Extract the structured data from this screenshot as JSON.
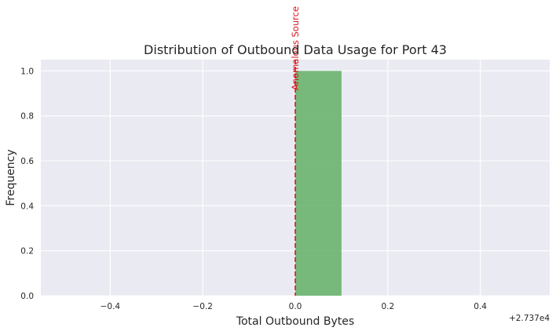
{
  "chart_data": {
    "type": "bar",
    "title": "Distribution of Outbound Data Usage for Port 43",
    "xlabel": "Total Outbound Bytes",
    "ylabel": "Frequency",
    "x_offset_label": "+2.737e4",
    "xlim": [
      -0.55,
      0.55
    ],
    "ylim": [
      0,
      1.05
    ],
    "xticks": [
      -0.4,
      -0.2,
      0.0,
      0.2,
      0.4
    ],
    "xtick_labels": [
      "−0.4",
      "−0.2",
      "0.0",
      "0.2",
      "0.4"
    ],
    "yticks": [
      0.0,
      0.2,
      0.4,
      0.6,
      0.8,
      1.0
    ],
    "ytick_labels": [
      "0.0",
      "0.2",
      "0.4",
      "0.6",
      "0.8",
      "1.0"
    ],
    "bins": [
      {
        "x0": 0.0,
        "x1": 0.1,
        "value": 1
      }
    ],
    "grid": true,
    "bar_color": "#6ab46e",
    "background_color": "#eaeaf2",
    "annotation": {
      "type": "vline",
      "x": 0.0,
      "label": "Anomalous Source",
      "color": "#d7191c",
      "style": "dashed"
    }
  }
}
